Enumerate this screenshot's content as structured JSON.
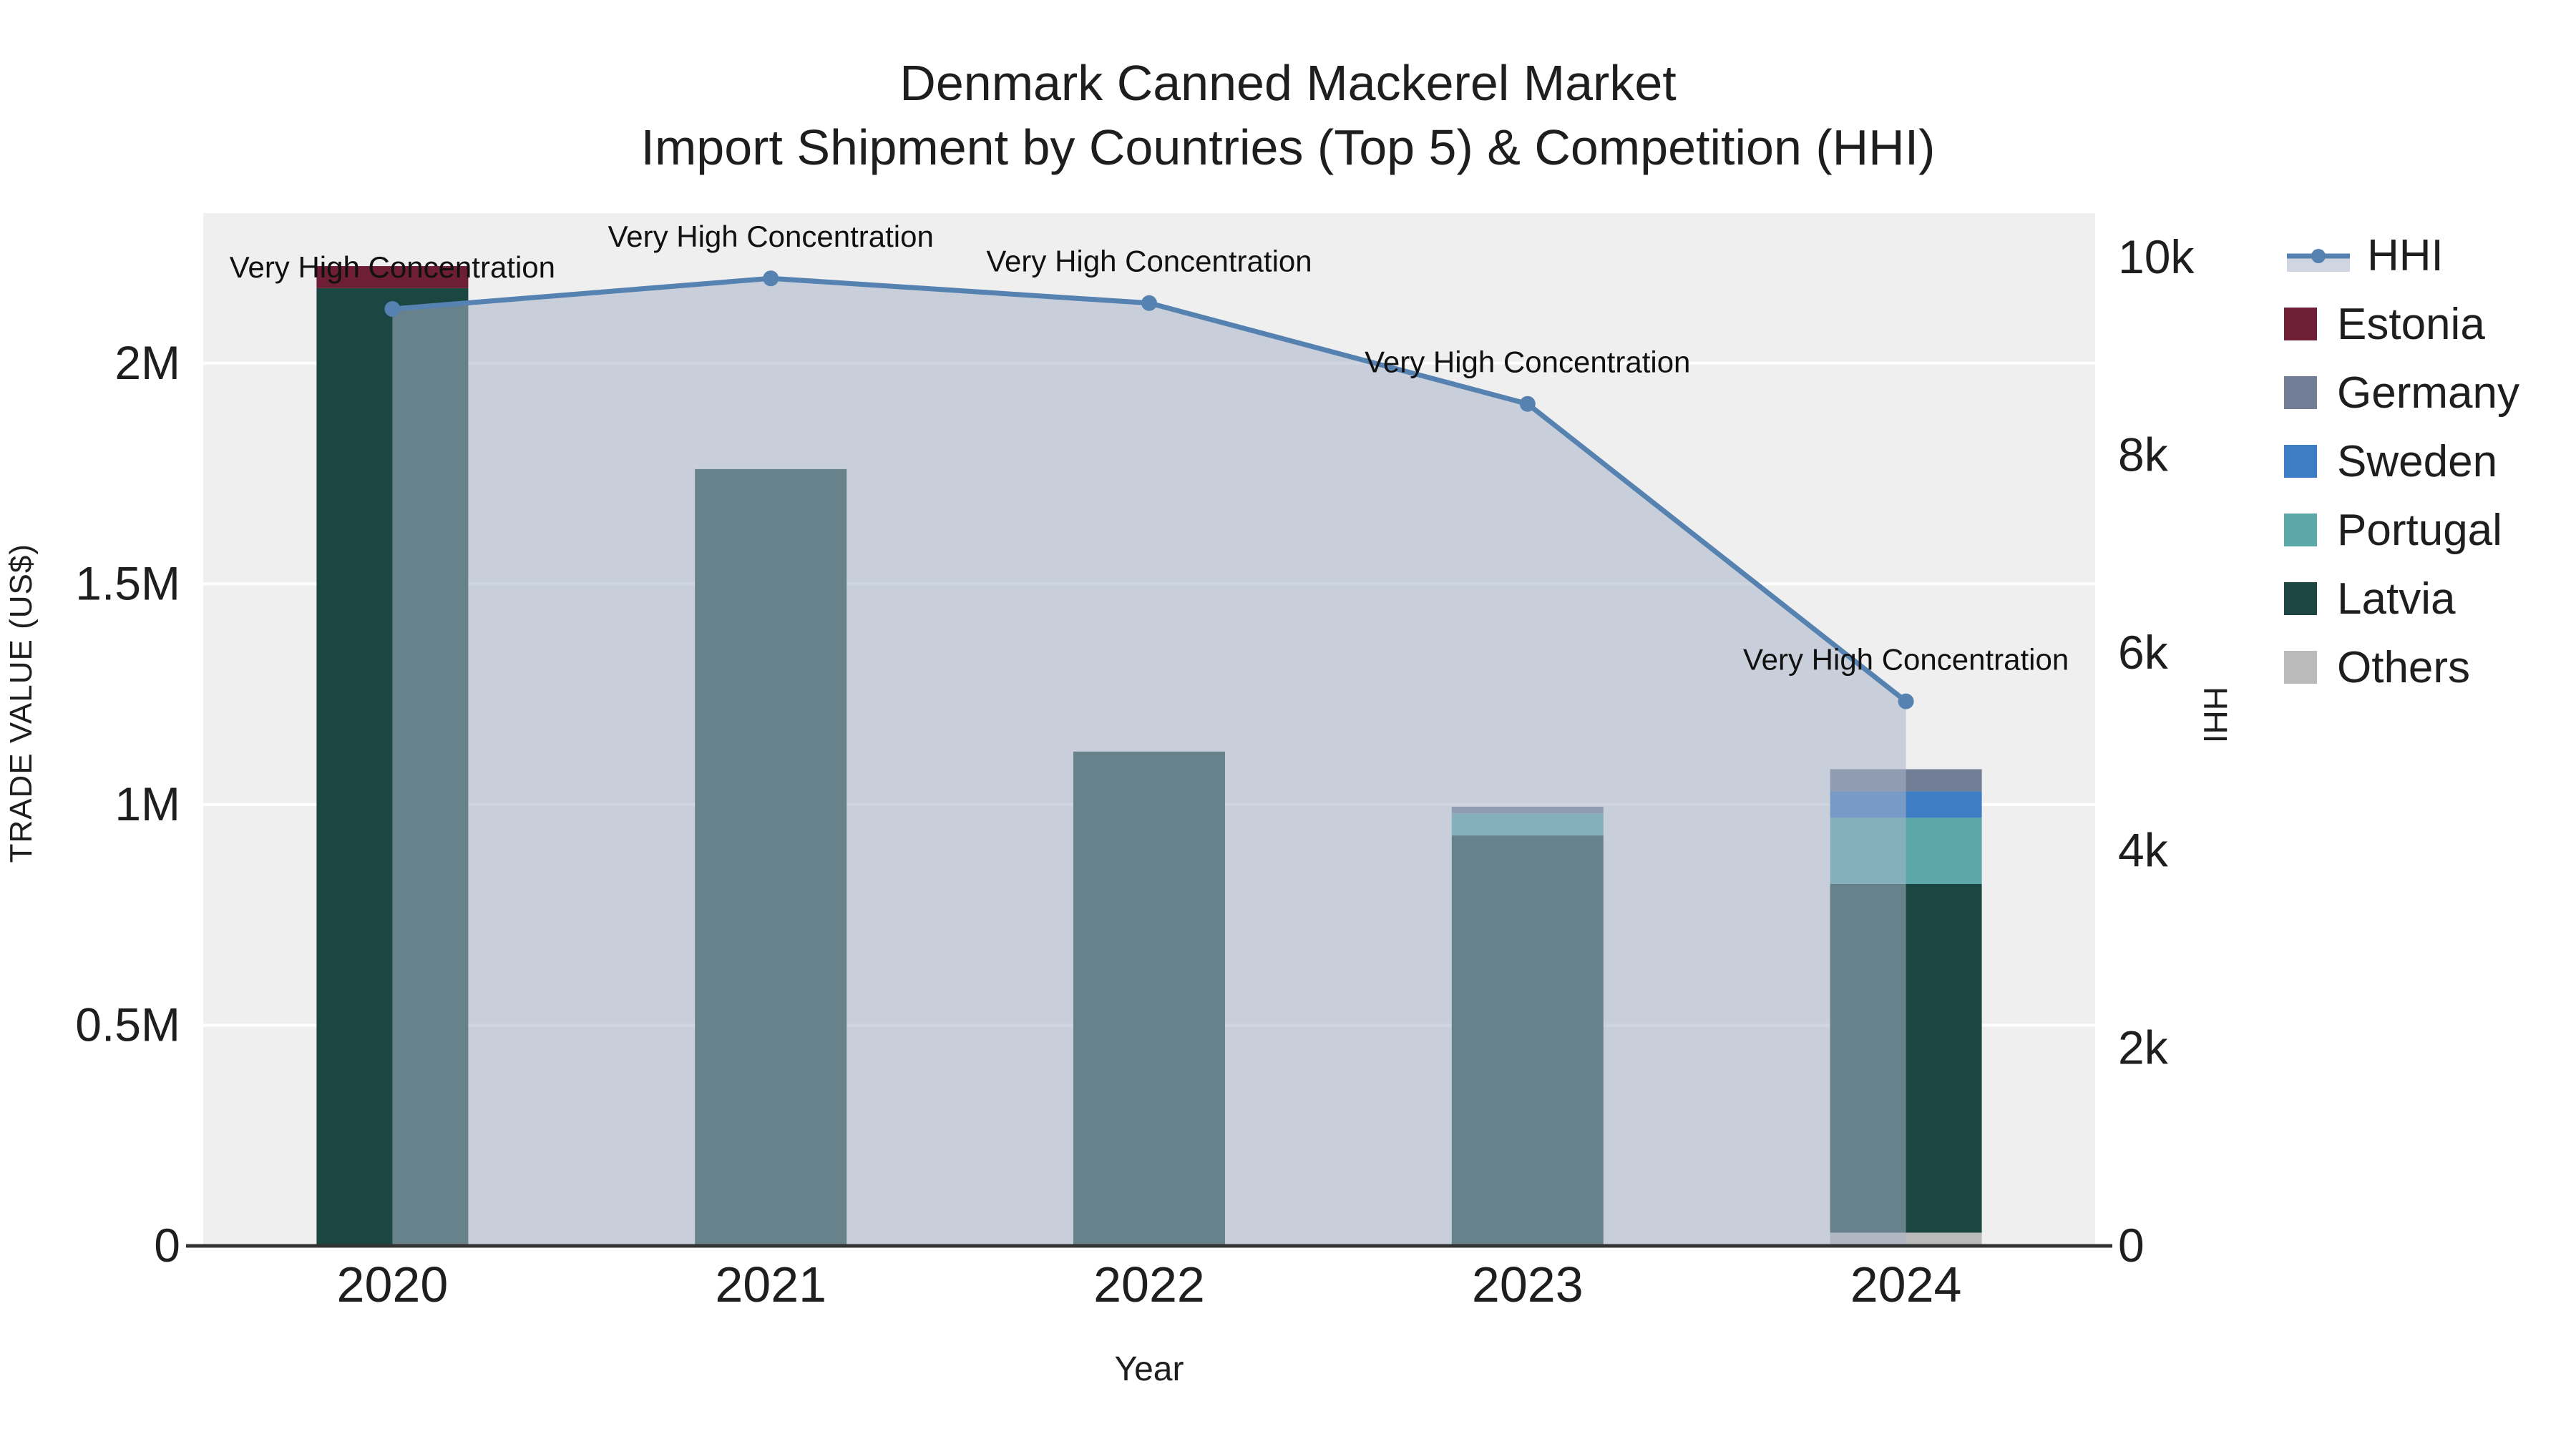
{
  "title_line1": "Denmark Canned Mackerel Market",
  "title_line2": "Import Shipment by Countries (Top 5) & Competition (HHI)",
  "chart_data": {
    "type": "stacked-bar+line-area",
    "x": [
      2020,
      2021,
      2022,
      2023,
      2024
    ],
    "bar_series": [
      {
        "name": "Estonia",
        "color": "#6e1e35",
        "values": [
          50000,
          0,
          0,
          0,
          0
        ]
      },
      {
        "name": "Germany",
        "color": "#717e95",
        "values": [
          0,
          0,
          0,
          15000,
          50000
        ]
      },
      {
        "name": "Sweden",
        "color": "#3c7dc4",
        "values": [
          0,
          0,
          0,
          0,
          60000
        ]
      },
      {
        "name": "Portugal",
        "color": "#5ca8a8",
        "values": [
          0,
          0,
          0,
          50000,
          150000
        ]
      },
      {
        "name": "Latvia",
        "color": "#1c4641",
        "values": [
          2170000,
          1760000,
          1120000,
          930000,
          790000
        ]
      },
      {
        "name": "Others",
        "color": "#bababa",
        "values": [
          0,
          0,
          0,
          0,
          30000
        ]
      }
    ],
    "stack_order_bottom_to_top": [
      "Others",
      "Latvia",
      "Portugal",
      "Sweden",
      "Germany",
      "Estonia"
    ],
    "line_series": {
      "name": "HHI",
      "color": "#5582b0",
      "fill": "rgba(167,180,200,0.55)",
      "values": [
        9480,
        9790,
        9540,
        8520,
        5510
      ]
    },
    "annotation_text": "Very High Concentration",
    "left_axis": {
      "title": "TRADE VALUE (US$)",
      "ticks": [
        "0",
        "0.5M",
        "1M",
        "1.5M",
        "2M"
      ],
      "tick_values": [
        0,
        500000,
        1000000,
        1500000,
        2000000
      ],
      "max": 2340000
    },
    "right_axis": {
      "title": "HHI",
      "ticks": [
        "0",
        "2k",
        "4k",
        "6k",
        "8k",
        "10k"
      ],
      "tick_values": [
        0,
        2000,
        4000,
        6000,
        8000,
        10000
      ],
      "max": 10450
    },
    "x_axis": {
      "title": "Year",
      "labels": [
        "2020",
        "2021",
        "2022",
        "2023",
        "2024"
      ]
    },
    "legend": [
      "HHI",
      "Estonia",
      "Germany",
      "Sweden",
      "Portugal",
      "Latvia",
      "Others"
    ],
    "layout_hints": {
      "grid": true,
      "legend_position": "right",
      "plot_bg": "#efefef"
    }
  }
}
